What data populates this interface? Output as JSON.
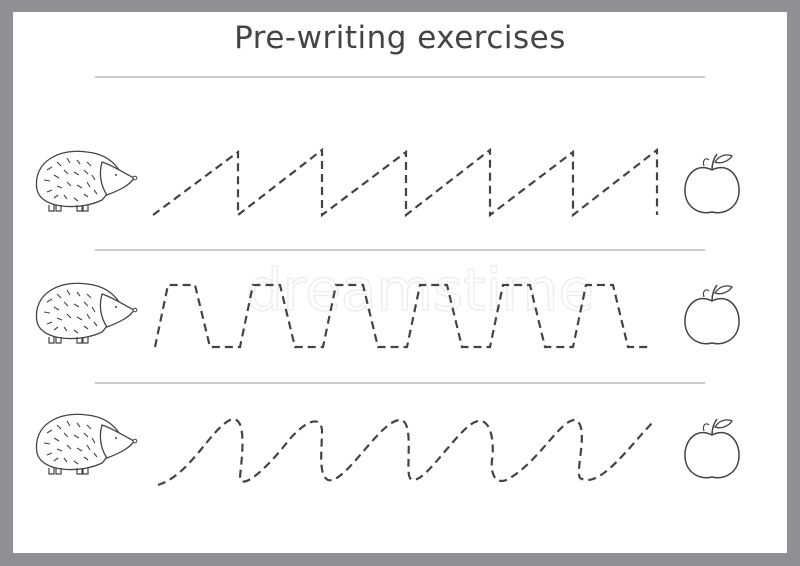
{
  "title": "Pre-writing exercises",
  "watermark": "dreamstime",
  "rows": [
    {
      "pattern": "zigzag",
      "start_icon": "hedgehog-icon",
      "end_icon": "apple-icon"
    },
    {
      "pattern": "trapezoid-wave",
      "start_icon": "hedgehog-icon",
      "end_icon": "apple-icon"
    },
    {
      "pattern": "curvy-wave",
      "start_icon": "hedgehog-icon",
      "end_icon": "apple-icon"
    }
  ],
  "colors": {
    "border": "#8f9094",
    "stroke": "#444444",
    "rule": "#999999"
  }
}
